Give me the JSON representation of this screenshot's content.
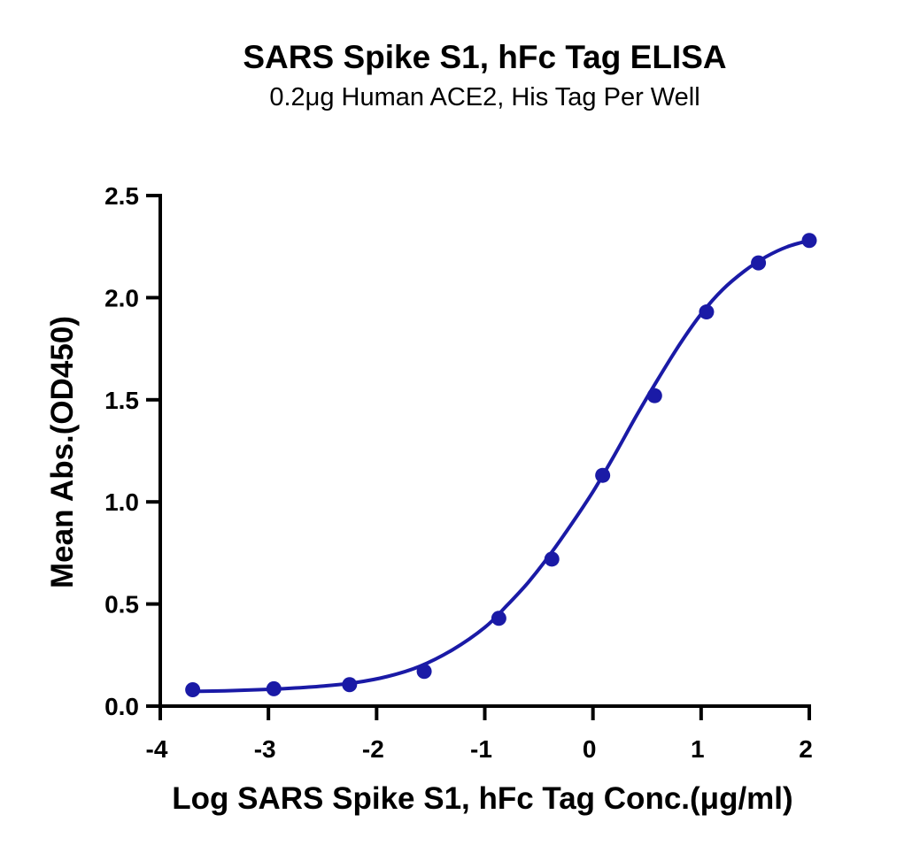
{
  "chart_data": {
    "type": "scatter",
    "title": "SARS Spike S1, hFc Tag ELISA",
    "subtitle": "0.2μg Human ACE2, His Tag Per Well",
    "xlabel": "Log SARS Spike S1, hFc Tag Conc.(μg/ml)",
    "ylabel": "Mean Abs.(OD450)",
    "xlim": [
      -4,
      2
    ],
    "ylim": [
      0,
      2.5
    ],
    "x_ticks": [
      -4,
      -3,
      -2,
      -1,
      0,
      1,
      2
    ],
    "x_tick_labels": [
      "-4",
      "-3",
      "-2",
      "-1",
      "0",
      "1",
      "2"
    ],
    "y_ticks": [
      0,
      0.5,
      1,
      1.5,
      2,
      2.5
    ],
    "y_tick_labels": [
      "0.0",
      "0.5",
      "1.0",
      "1.5",
      "2.0",
      "2.5"
    ],
    "grid": false,
    "legend": "none",
    "color": "#1a1aa6",
    "series": [
      {
        "x": [
          -3.7,
          -2.95,
          -2.25,
          -1.56,
          -0.87,
          -0.38,
          0.09,
          0.57,
          1.05,
          1.53,
          2.0
        ],
        "y": [
          0.08,
          0.085,
          0.105,
          0.17,
          0.43,
          0.72,
          1.13,
          1.52,
          1.93,
          2.17,
          2.28
        ]
      }
    ],
    "fit_curve": {
      "x": [
        -3.7,
        -3.4,
        -3.1,
        -2.8,
        -2.5,
        -2.2,
        -1.9,
        -1.6,
        -1.3,
        -1.0,
        -0.8,
        -0.6,
        -0.4,
        -0.2,
        0.0,
        0.2,
        0.4,
        0.6,
        0.8,
        1.0,
        1.2,
        1.4,
        1.6,
        1.8,
        2.0
      ],
      "y": [
        0.072,
        0.075,
        0.08,
        0.087,
        0.098,
        0.115,
        0.145,
        0.195,
        0.275,
        0.385,
        0.49,
        0.605,
        0.74,
        0.89,
        1.05,
        1.23,
        1.42,
        1.6,
        1.77,
        1.92,
        2.04,
        2.13,
        2.2,
        2.25,
        2.28
      ]
    }
  }
}
